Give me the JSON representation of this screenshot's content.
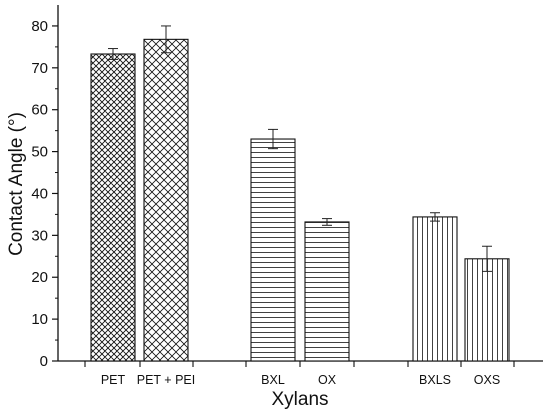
{
  "chart_data": {
    "type": "bar",
    "xlabel": "Xylans",
    "ylabel": "Contact Angle (°)",
    "ylim": [
      0,
      85
    ],
    "yticks": [
      0,
      10,
      20,
      30,
      40,
      50,
      60,
      70,
      80
    ],
    "grid": false,
    "categories": [
      "PET",
      "PET + PEI",
      "BXL",
      "OX",
      "BXLS",
      "OXS"
    ],
    "values": [
      73.3,
      76.8,
      53.0,
      33.2,
      34.4,
      24.4
    ],
    "errors": [
      1.3,
      3.2,
      2.3,
      0.8,
      1.0,
      3.0
    ],
    "patterns": [
      "crosshatch-dense",
      "crosshatch",
      "horizontal",
      "horizontal",
      "vertical",
      "vertical"
    ]
  }
}
